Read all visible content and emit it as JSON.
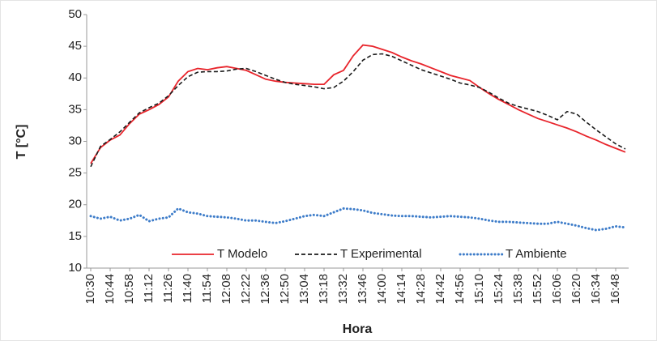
{
  "chart_data": {
    "type": "line",
    "y_label": "T [°C]",
    "x_label": "Hora",
    "categories": [
      "10:30",
      null,
      "10:44",
      null,
      "10:58",
      null,
      "11:12",
      null,
      "11:26",
      null,
      "11:40",
      null,
      "11:54",
      null,
      "12:08",
      null,
      "12:22",
      null,
      "12:36",
      null,
      "12:50",
      null,
      "13:04",
      null,
      "13:18",
      null,
      "13:32",
      null,
      "13:46",
      null,
      "14:00",
      null,
      "14:14",
      null,
      "14:28",
      null,
      "14:42",
      null,
      "14:56",
      null,
      "15:10",
      null,
      "15:24",
      null,
      "15:38",
      null,
      "15:52",
      null,
      "16:06",
      null,
      "16:20",
      null,
      "16:34",
      null,
      "16:48",
      null
    ],
    "series": [
      {
        "name": "T Modelo",
        "color": "#e8242b",
        "dash": "solid",
        "values": [
          26.5,
          29,
          30.2,
          31,
          32.8,
          34.3,
          35,
          35.8,
          37,
          39.5,
          41,
          41.5,
          41.3,
          41.6,
          41.8,
          41.5,
          41.2,
          40.5,
          39.8,
          39.5,
          39.3,
          39.2,
          39.1,
          39,
          39,
          40.5,
          41.2,
          43.5,
          45.2,
          45,
          44.5,
          44,
          43.3,
          42.7,
          42.2,
          41.6,
          41,
          40.4,
          40,
          39.6,
          38.5,
          37.5,
          36.6,
          35.8,
          35,
          34.3,
          33.6,
          33.1,
          32.6,
          32.1,
          31.5,
          30.8,
          30.2,
          29.5,
          28.9,
          28.3
        ]
      },
      {
        "name": "T Experimental",
        "color": "#1a1a1a",
        "dash": "dashed",
        "values": [
          26,
          29.2,
          30.3,
          31.5,
          33,
          34.5,
          35.3,
          36,
          37.2,
          38.8,
          40.2,
          40.9,
          41,
          41,
          41.1,
          41.4,
          41.5,
          41,
          40.4,
          39.8,
          39.3,
          39,
          38.8,
          38.6,
          38.3,
          38.5,
          39.5,
          41,
          42.8,
          43.7,
          43.8,
          43.4,
          42.7,
          42,
          41.3,
          40.8,
          40.3,
          39.8,
          39.2,
          38.9,
          38.5,
          37.7,
          36.8,
          36,
          35.5,
          35.1,
          34.7,
          34.1,
          33.4,
          34.7,
          34.3,
          33,
          31.8,
          30.7,
          29.6,
          28.8
        ]
      },
      {
        "name": "T Ambiente",
        "color": "#3d7cc9",
        "dash": "dotted",
        "values": [
          18.2,
          17.8,
          18.1,
          17.5,
          17.8,
          18.4,
          17.4,
          17.8,
          18,
          19.4,
          18.8,
          18.6,
          18.2,
          18.1,
          18,
          17.8,
          17.5,
          17.5,
          17.3,
          17.1,
          17.4,
          17.8,
          18.2,
          18.4,
          18.2,
          18.8,
          19.4,
          19.3,
          19.1,
          18.7,
          18.5,
          18.3,
          18.2,
          18.2,
          18.1,
          18,
          18.1,
          18.2,
          18.1,
          18,
          17.8,
          17.5,
          17.3,
          17.3,
          17.2,
          17.1,
          17,
          17,
          17.3,
          17,
          16.7,
          16.3,
          16,
          16.2,
          16.6,
          16.4
        ]
      }
    ],
    "ylim": [
      10,
      50
    ],
    "yticks": [
      10,
      15,
      20,
      25,
      30,
      35,
      40,
      45,
      50
    ],
    "grid": false,
    "legend": "bottom"
  }
}
